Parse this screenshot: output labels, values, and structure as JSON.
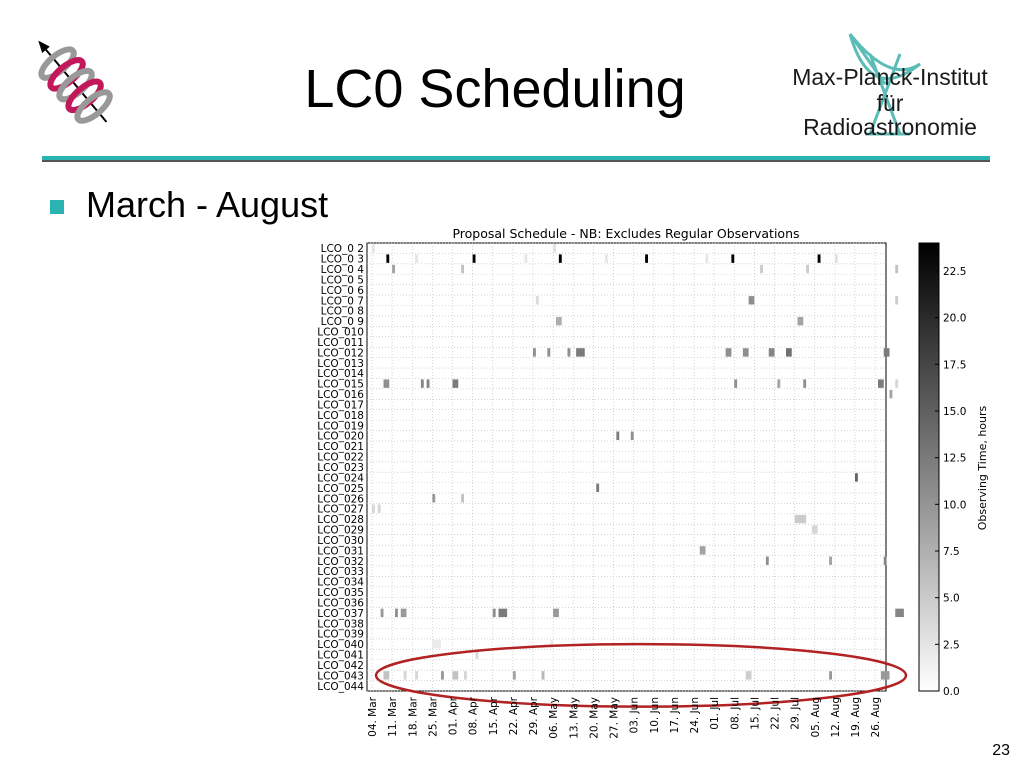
{
  "slide": {
    "title": "LC0 Scheduling",
    "bullet": "March - August",
    "page_number": "23",
    "institute_line1": "Max-Planck-Institut",
    "institute_line2": "für",
    "institute_line3": "Radioastronomie",
    "accent_color": "#2bb3b1"
  },
  "chart_data": {
    "type": "heatmap",
    "title": "Proposal Schedule - NB: Excludes Regular Observations",
    "colorbar_label": "Observing Time, hours",
    "colorbar_range": [
      0,
      24
    ],
    "colorbar_ticks": [
      "0.0",
      "2.5",
      "5.0",
      "7.5",
      "10.0",
      "12.5",
      "15.0",
      "17.5",
      "20.0",
      "22.5"
    ],
    "colormap": "greys",
    "x_ticks": [
      "04. Mar",
      "11. Mar",
      "18. Mar",
      "25. Mar",
      "01. Apr",
      "08. Apr",
      "15. Apr",
      "22. Apr",
      "29. Apr",
      "06. May",
      "13. May",
      "20. May",
      "27. May",
      "03. Jun",
      "10. Jun",
      "17. Jun",
      "24. Jun",
      "01. Jul",
      "08. Jul",
      "15. Jul",
      "22. Jul",
      "29. Jul",
      "05. Aug",
      "12. Aug",
      "19. Aug",
      "26. Aug"
    ],
    "y_labels": [
      "LCO_0 2",
      "LCO_0 3",
      "LCO_0 4",
      "LCO_0 5",
      "LCO_0 6",
      "LCO_0 7",
      "LCO_0 8",
      "LCO_0 9",
      "LCO_010",
      "LCO_011",
      "LCO_012",
      "LCO_013",
      "LCO_014",
      "LCO_015",
      "LCO_016",
      "LCO_017",
      "LCO_018",
      "LCO_019",
      "LCO_020",
      "LCO_021",
      "LCO_022",
      "LCO_023",
      "LCO_024",
      "LCO_025",
      "LCO_026",
      "LCO_027",
      "LCO_028",
      "LCO_029",
      "LCO_030",
      "LCO_031",
      "LCO_032",
      "LCO_033",
      "LCO_034",
      "LCO_035",
      "LCO_036",
      "LCO_037",
      "LCO_038",
      "LCO_039",
      "LCO_040",
      "LCO_041",
      "LCO_042",
      "LCO_043",
      "LCO_044"
    ],
    "grid": true,
    "cells": [
      {
        "row": "LCO_0 2",
        "day": "2012-03-04",
        "days": 1,
        "hours": 1.5
      },
      {
        "row": "LCO_0 2",
        "day": "2012-05-06",
        "days": 1,
        "hours": 2
      },
      {
        "row": "LCO_0 3",
        "day": "2012-03-09",
        "days": 1,
        "hours": 24
      },
      {
        "row": "LCO_0 3",
        "day": "2012-04-08",
        "days": 1,
        "hours": 24
      },
      {
        "row": "LCO_0 3",
        "day": "2012-05-08",
        "days": 1,
        "hours": 24
      },
      {
        "row": "LCO_0 3",
        "day": "2012-06-07",
        "days": 1,
        "hours": 24
      },
      {
        "row": "LCO_0 3",
        "day": "2012-07-07",
        "days": 1,
        "hours": 24
      },
      {
        "row": "LCO_0 3",
        "day": "2012-08-06",
        "days": 1,
        "hours": 24
      },
      {
        "row": "LCO_0 3",
        "day": "2012-03-19",
        "days": 1,
        "hours": 1.5
      },
      {
        "row": "LCO_0 3",
        "day": "2012-04-26",
        "days": 1,
        "hours": 1.5
      },
      {
        "row": "LCO_0 3",
        "day": "2012-05-24",
        "days": 1,
        "hours": 1.5
      },
      {
        "row": "LCO_0 3",
        "day": "2012-06-28",
        "days": 1,
        "hours": 1.5
      },
      {
        "row": "LCO_0 3",
        "day": "2012-08-12",
        "days": 1,
        "hours": 2
      },
      {
        "row": "LCO_0 4",
        "day": "2012-03-11",
        "days": 1,
        "hours": 8
      },
      {
        "row": "LCO_0 4",
        "day": "2012-04-04",
        "days": 1,
        "hours": 5
      },
      {
        "row": "LCO_0 4",
        "day": "2012-07-17",
        "days": 1,
        "hours": 4
      },
      {
        "row": "LCO_0 4",
        "day": "2012-08-02",
        "days": 1,
        "hours": 4
      },
      {
        "row": "LCO_0 4",
        "day": "2012-09-02",
        "days": 1,
        "hours": 5
      },
      {
        "row": "LCO_0 7",
        "day": "2012-04-30",
        "days": 1,
        "hours": 2.5
      },
      {
        "row": "LCO_0 7",
        "day": "2012-07-13",
        "days": 2,
        "hours": 10
      },
      {
        "row": "LCO_0 7",
        "day": "2012-09-02",
        "days": 1,
        "hours": 4
      },
      {
        "row": "LCO_0 9",
        "day": "2012-05-07",
        "days": 2,
        "hours": 7
      },
      {
        "row": "LCO_0 9",
        "day": "2012-07-30",
        "days": 2,
        "hours": 8
      },
      {
        "row": "LCO_012",
        "day": "2012-04-29",
        "days": 1,
        "hours": 10
      },
      {
        "row": "LCO_012",
        "day": "2012-05-04",
        "days": 1,
        "hours": 10
      },
      {
        "row": "LCO_012",
        "day": "2012-05-11",
        "days": 1,
        "hours": 10
      },
      {
        "row": "LCO_012",
        "day": "2012-05-14",
        "days": 3,
        "hours": 12
      },
      {
        "row": "LCO_012",
        "day": "2012-07-05",
        "days": 2,
        "hours": 10
      },
      {
        "row": "LCO_012",
        "day": "2012-07-11",
        "days": 2,
        "hours": 10
      },
      {
        "row": "LCO_012",
        "day": "2012-07-26",
        "days": 2,
        "hours": 13
      },
      {
        "row": "LCO_012",
        "day": "2012-07-20",
        "days": 2,
        "hours": 11
      },
      {
        "row": "LCO_012",
        "day": "2012-08-29",
        "days": 2,
        "hours": 12
      },
      {
        "row": "LCO_015",
        "day": "2012-03-08",
        "days": 2,
        "hours": 10
      },
      {
        "row": "LCO_015",
        "day": "2012-03-21",
        "days": 1,
        "hours": 11
      },
      {
        "row": "LCO_015",
        "day": "2012-03-23",
        "days": 1,
        "hours": 11
      },
      {
        "row": "LCO_015",
        "day": "2012-04-01",
        "days": 2,
        "hours": 12
      },
      {
        "row": "LCO_015",
        "day": "2012-07-08",
        "days": 1,
        "hours": 10
      },
      {
        "row": "LCO_015",
        "day": "2012-07-23",
        "days": 1,
        "hours": 8
      },
      {
        "row": "LCO_015",
        "day": "2012-08-01",
        "days": 1,
        "hours": 10
      },
      {
        "row": "LCO_015",
        "day": "2012-08-27",
        "days": 2,
        "hours": 12
      },
      {
        "row": "LCO_015",
        "day": "2012-09-02",
        "days": 1,
        "hours": 3
      },
      {
        "row": "LCO_016",
        "day": "2012-08-31",
        "days": 1,
        "hours": 8
      },
      {
        "row": "LCO_020",
        "day": "2012-05-28",
        "days": 1,
        "hours": 12
      },
      {
        "row": "LCO_020",
        "day": "2012-06-02",
        "days": 1,
        "hours": 10
      },
      {
        "row": "LCO_024",
        "day": "2012-08-19",
        "days": 1,
        "hours": 14
      },
      {
        "row": "LCO_025",
        "day": "2012-05-21",
        "days": 1,
        "hours": 12
      },
      {
        "row": "LCO_026",
        "day": "2012-03-25",
        "days": 1,
        "hours": 9
      },
      {
        "row": "LCO_026",
        "day": "2012-04-04",
        "days": 1,
        "hours": 5
      },
      {
        "row": "LCO_027",
        "day": "2012-03-04",
        "days": 1,
        "hours": 3
      },
      {
        "row": "LCO_027",
        "day": "2012-03-06",
        "days": 1,
        "hours": 3
      },
      {
        "row": "LCO_028",
        "day": "2012-07-29",
        "days": 4,
        "hours": 4
      },
      {
        "row": "LCO_029",
        "day": "2012-08-04",
        "days": 2,
        "hours": 3
      },
      {
        "row": "LCO_031",
        "day": "2012-06-26",
        "days": 2,
        "hours": 8
      },
      {
        "row": "LCO_032",
        "day": "2012-07-19",
        "days": 1,
        "hours": 10
      },
      {
        "row": "LCO_032",
        "day": "2012-08-10",
        "days": 1,
        "hours": 8
      },
      {
        "row": "LCO_032",
        "day": "2012-08-29",
        "days": 1,
        "hours": 11
      },
      {
        "row": "LCO_037",
        "day": "2012-03-07",
        "days": 1,
        "hours": 9
      },
      {
        "row": "LCO_037",
        "day": "2012-03-12",
        "days": 1,
        "hours": 10
      },
      {
        "row": "LCO_037",
        "day": "2012-03-14",
        "days": 2,
        "hours": 9
      },
      {
        "row": "LCO_037",
        "day": "2012-04-15",
        "days": 1,
        "hours": 10
      },
      {
        "row": "LCO_037",
        "day": "2012-04-17",
        "days": 3,
        "hours": 12
      },
      {
        "row": "LCO_037",
        "day": "2012-05-06",
        "days": 2,
        "hours": 9
      },
      {
        "row": "LCO_037",
        "day": "2012-09-02",
        "days": 3,
        "hours": 11
      },
      {
        "row": "LCO_040",
        "day": "2012-03-25",
        "days": 3,
        "hours": 1
      },
      {
        "row": "LCO_040",
        "day": "2012-05-05",
        "days": 1,
        "hours": 1
      },
      {
        "row": "LCO_041",
        "day": "2012-04-09",
        "days": 1,
        "hours": 3
      },
      {
        "row": "LCO_043",
        "day": "2012-03-08",
        "days": 2,
        "hours": 5
      },
      {
        "row": "LCO_043",
        "day": "2012-03-15",
        "days": 1,
        "hours": 3
      },
      {
        "row": "LCO_043",
        "day": "2012-03-19",
        "days": 1,
        "hours": 3
      },
      {
        "row": "LCO_043",
        "day": "2012-03-28",
        "days": 1,
        "hours": 9
      },
      {
        "row": "LCO_043",
        "day": "2012-04-01",
        "days": 2,
        "hours": 5
      },
      {
        "row": "LCO_043",
        "day": "2012-04-05",
        "days": 1,
        "hours": 3
      },
      {
        "row": "LCO_043",
        "day": "2012-04-22",
        "days": 1,
        "hours": 8
      },
      {
        "row": "LCO_043",
        "day": "2012-05-02",
        "days": 1,
        "hours": 6
      },
      {
        "row": "LCO_043",
        "day": "2012-07-12",
        "days": 2,
        "hours": 4
      },
      {
        "row": "LCO_043",
        "day": "2012-08-10",
        "days": 1,
        "hours": 9
      },
      {
        "row": "LCO_043",
        "day": "2012-08-28",
        "days": 3,
        "hours": 9
      }
    ],
    "annotation": {
      "type": "ellipse",
      "color": "#b22222",
      "rows": [
        "LCO_042",
        "LCO_044"
      ]
    }
  }
}
